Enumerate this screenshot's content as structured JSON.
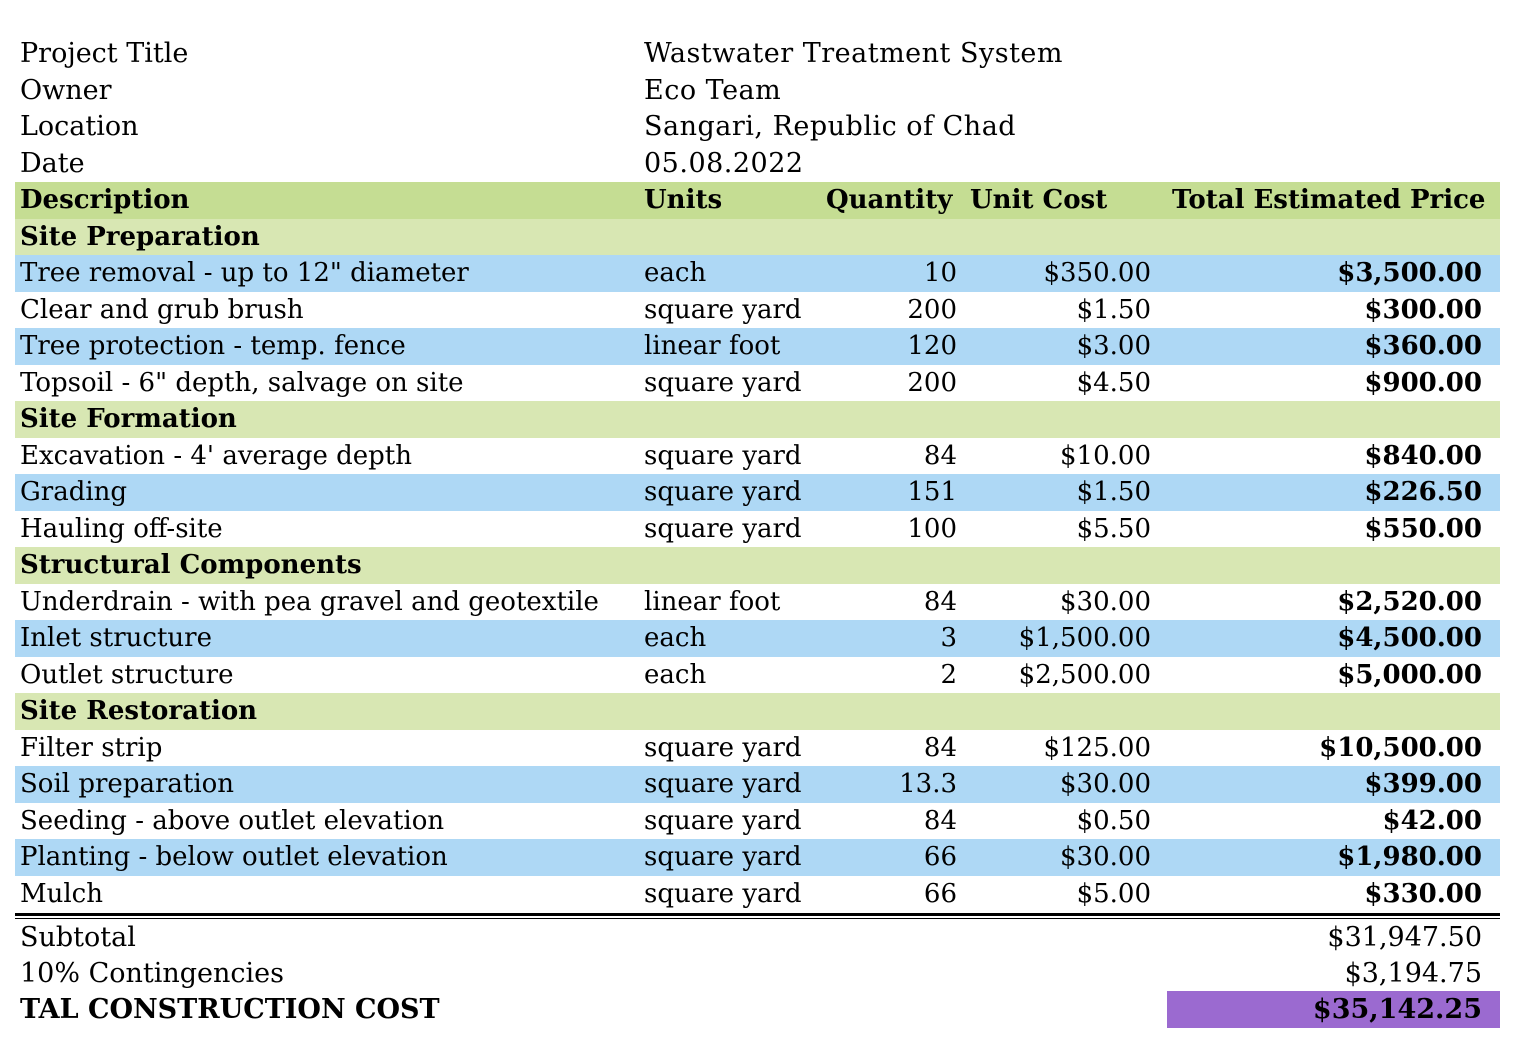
{
  "meta": [
    {
      "label": "Project Title",
      "value": "Wastwater Treatment System"
    },
    {
      "label": "Owner",
      "value": "Eco Team"
    },
    {
      "label": "Location",
      "value": "Sangari, Republic of Chad"
    },
    {
      "label": "Date",
      "value": "05.08.2022"
    }
  ],
  "headers": {
    "description": "Description",
    "units": "Units",
    "quantity": "Quantity",
    "unit_cost": "Unit Cost",
    "total": "Total Estimated Price"
  },
  "sections": {
    "site_preparation": "Site Preparation",
    "site_formation": "Site Formation",
    "structural_components": "Structural Components",
    "site_restoration": "Site Restoration"
  },
  "items": [
    {
      "description": "Tree removal - up to 12\" diameter",
      "units": "each",
      "quantity": "10",
      "unit_cost": "$350.00",
      "total": "$3,500.00"
    },
    {
      "description": "Clear and grub brush",
      "units": "square yard",
      "quantity": "200",
      "unit_cost": "$1.50",
      "total": "$300.00"
    },
    {
      "description": "Tree protection - temp. fence",
      "units": "linear foot",
      "quantity": "120",
      "unit_cost": "$3.00",
      "total": "$360.00"
    },
    {
      "description": "Topsoil - 6\" depth, salvage on site",
      "units": "square yard",
      "quantity": "200",
      "unit_cost": "$4.50",
      "total": "$900.00"
    },
    {
      "description": "Excavation - 4' average depth",
      "units": "square yard",
      "quantity": "84",
      "unit_cost": "$10.00",
      "total": "$840.00"
    },
    {
      "description": "Grading",
      "units": "square yard",
      "quantity": "151",
      "unit_cost": "$1.50",
      "total": "$226.50"
    },
    {
      "description": "Hauling off-site",
      "units": "square yard",
      "quantity": "100",
      "unit_cost": "$5.50",
      "total": "$550.00"
    },
    {
      "description": "Underdrain - with pea gravel and geotextile",
      "units": "linear foot",
      "quantity": "84",
      "unit_cost": "$30.00",
      "total": "$2,520.00"
    },
    {
      "description": "Inlet structure",
      "units": "each",
      "quantity": "3",
      "unit_cost": "$1,500.00",
      "total": "$4,500.00"
    },
    {
      "description": "Outlet structure",
      "units": "each",
      "quantity": "2",
      "unit_cost": "$2,500.00",
      "total": "$5,000.00"
    },
    {
      "description": "Filter strip",
      "units": "square yard",
      "quantity": "84",
      "unit_cost": "$125.00",
      "total": "$10,500.00"
    },
    {
      "description": "Soil preparation",
      "units": "square yard",
      "quantity": "13.3",
      "unit_cost": "$30.00",
      "total": "$399.00"
    },
    {
      "description": "Seeding - above outlet elevation",
      "units": "square yard",
      "quantity": "84",
      "unit_cost": "$0.50",
      "total": "$42.00"
    },
    {
      "description": "Planting - below outlet elevation",
      "units": "square yard",
      "quantity": "66",
      "unit_cost": "$30.00",
      "total": "$1,980.00"
    },
    {
      "description": "Mulch",
      "units": "square yard",
      "quantity": "66",
      "unit_cost": "$5.00",
      "total": "$330.00"
    }
  ],
  "summary": {
    "subtotal_label": "Subtotal",
    "subtotal": "$31,947.50",
    "contingency_label": "10% Contingencies",
    "contingency": "$3,194.75",
    "grand_label": "TAL CONSTRUCTION COST",
    "grand": "$35,142.25"
  },
  "colors": {
    "header_green": "#c5dd93",
    "section_green": "#d8e7b3",
    "row_blue": "#aed8f5",
    "grand_purple": "#9b6ad0"
  }
}
